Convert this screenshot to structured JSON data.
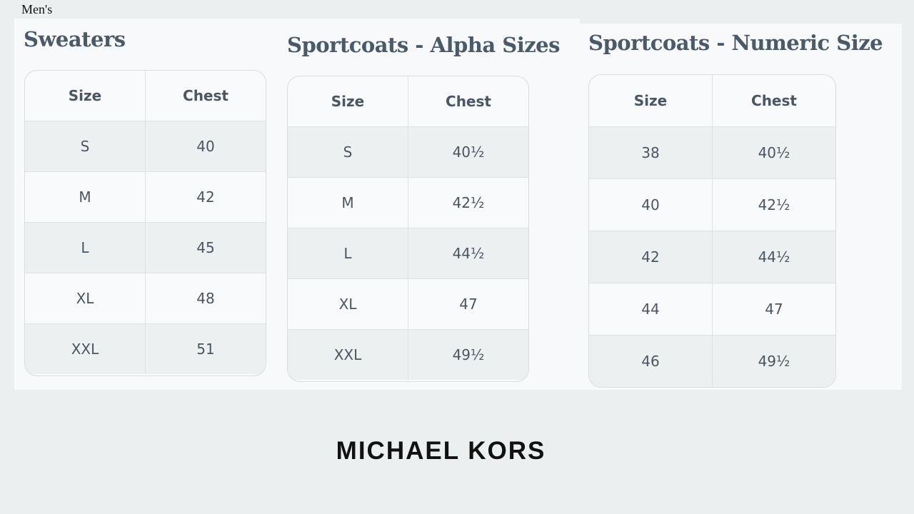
{
  "caption": "Men's",
  "tables": [
    {
      "title": "Sweaters",
      "headers": [
        "Size",
        "Chest"
      ],
      "rows": [
        [
          "S",
          "40"
        ],
        [
          "M",
          "42"
        ],
        [
          "L",
          "45"
        ],
        [
          "XL",
          "48"
        ],
        [
          "XXL",
          "51"
        ]
      ]
    },
    {
      "title": "Sportcoats - Alpha Sizes",
      "headers": [
        "Size",
        "Chest"
      ],
      "rows": [
        [
          "S",
          "40½"
        ],
        [
          "M",
          "42½"
        ],
        [
          "L",
          "44½"
        ],
        [
          "XL",
          "47"
        ],
        [
          "XXL",
          "49½"
        ]
      ]
    },
    {
      "title": "Sportcoats - Numeric Size",
      "headers": [
        "Size",
        "Chest"
      ],
      "rows": [
        [
          "38",
          "40½"
        ],
        [
          "40",
          "42½"
        ],
        [
          "42",
          "44½"
        ],
        [
          "44",
          "47"
        ],
        [
          "46",
          "49½"
        ]
      ]
    }
  ],
  "brand": "MICHAEL KORS",
  "colors": {
    "background": "#eceff0",
    "panel": "#f7f9fa",
    "title": "#4a5a68",
    "shaded_row": "#edf0f1"
  }
}
